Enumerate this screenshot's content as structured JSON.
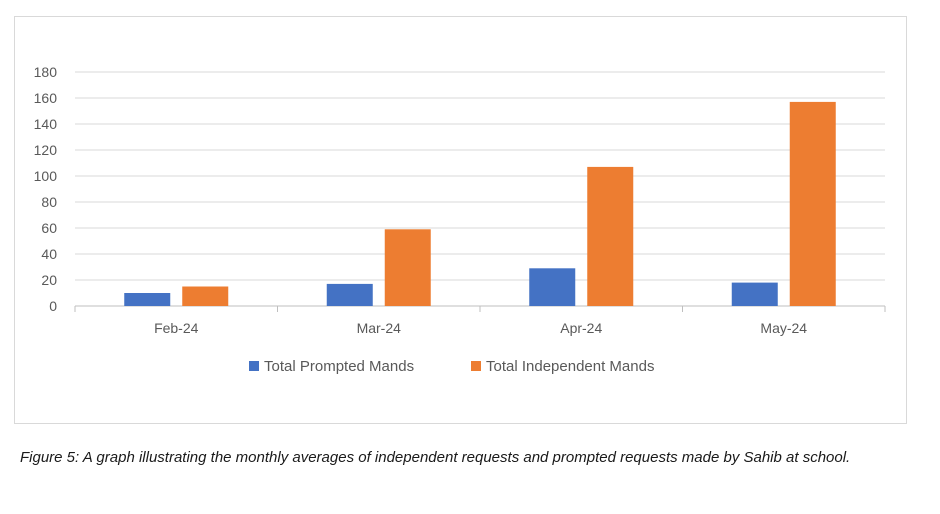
{
  "chart_data": {
    "type": "bar",
    "categories": [
      "Feb-24",
      "Mar-24",
      "Apr-24",
      "May-24"
    ],
    "series": [
      {
        "name": "Total Prompted Mands",
        "values": [
          10,
          17,
          29,
          18
        ],
        "color": "#4472C4"
      },
      {
        "name": "Total Independent Mands",
        "values": [
          15,
          59,
          107,
          157
        ],
        "color": "#ED7D31"
      }
    ],
    "ylim": [
      0,
      180
    ],
    "yticks": [
      0,
      20,
      40,
      60,
      80,
      100,
      120,
      140,
      160,
      180
    ],
    "grid": true,
    "legend": "bottom"
  },
  "caption": "Figure 5: A graph illustrating the monthly averages of independent requests and prompted requests made by Sahib at school."
}
